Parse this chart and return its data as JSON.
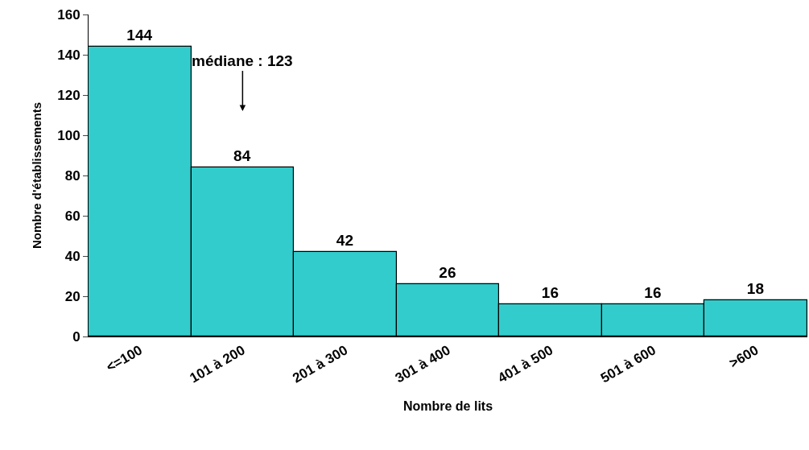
{
  "chart_data": {
    "type": "bar",
    "xlabel": "Nombre de lits",
    "ylabel": "Nombre d'établissements",
    "categories": [
      "<=100",
      "101 à 200",
      "201 à 300",
      "301 à 400",
      "401 à 500",
      "501 à 600",
      ">600"
    ],
    "values": [
      144,
      84,
      42,
      26,
      16,
      16,
      18
    ],
    "color": "#33cccc",
    "ylim": [
      0,
      160
    ],
    "yticks": [
      0,
      20,
      40,
      60,
      80,
      100,
      120,
      140,
      160
    ],
    "data_labels": true,
    "annotations": [
      "médiane : 123"
    ]
  }
}
